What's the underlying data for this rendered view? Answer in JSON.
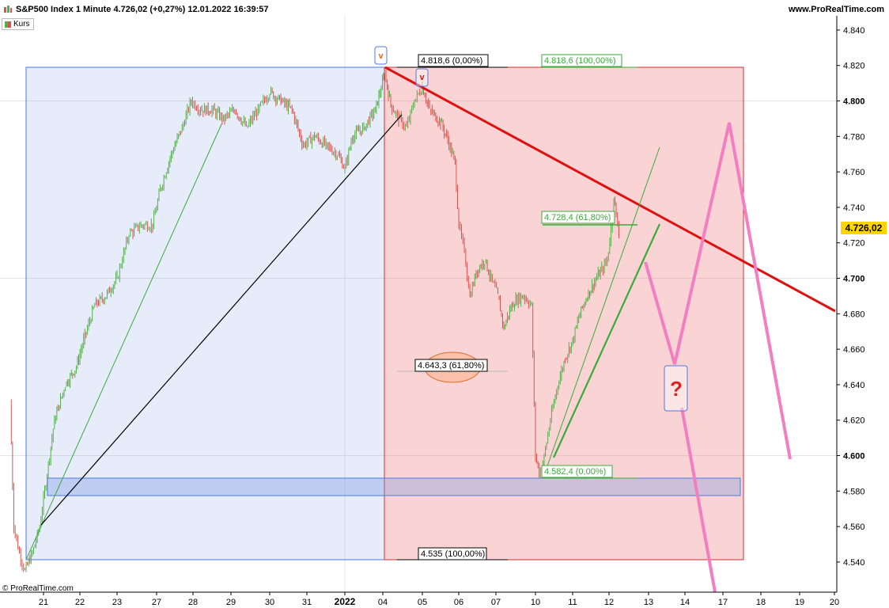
{
  "header": {
    "title": "S&P500 Index 1 Minute 4.726,02 (+0,27%) 12.01.2022 16:39:57",
    "site": "www.ProRealTime.com"
  },
  "legend": {
    "label": "Kurs"
  },
  "copyright": "© ProRealTime.com",
  "price_label": "4.726,02",
  "colors": {
    "up": "#55b04a",
    "down": "#d9534f",
    "trend": "#e01010",
    "projection": "#f27fc1",
    "accent": "#ffd400"
  },
  "annotations": {
    "fib_top_left": "4.818,6 (0,00%)",
    "fib_top_right": "4.818,6 (100,00%)",
    "fib_mid_right": "4.728,4 (61,80%)",
    "fib_mid_left": "4.643,3 (61,80%)",
    "fib_bottom_right": "4.582,4 (0,00%)",
    "fib_bottom_left": "4.535 (100,00%)",
    "question": "?",
    "marker_v1": "v",
    "marker_v2": "v"
  },
  "chart_data": {
    "type": "line",
    "title": "S&P500 Index 1 Minute",
    "xlabel": "",
    "ylabel": "",
    "ylim": [
      4523,
      4848
    ],
    "y_ticks": [
      4540,
      4560,
      4580,
      4600,
      4620,
      4640,
      4660,
      4680,
      4700,
      4720,
      4740,
      4760,
      4780,
      4800,
      4820,
      4840
    ],
    "y_tick_labels": [
      "4.540",
      "4.560",
      "4.580",
      "4.600",
      "4.620",
      "4.640",
      "4.660",
      "4.680",
      "4.700",
      "4.720",
      "4.740",
      "4.760",
      "4.780",
      "4.800",
      "4.820",
      "4.840"
    ],
    "x_ticks": [
      {
        "label": "21",
        "x": 1
      },
      {
        "label": "22",
        "x": 2
      },
      {
        "label": "23",
        "x": 3
      },
      {
        "label": "27",
        "x": 4
      },
      {
        "label": "28",
        "x": 5
      },
      {
        "label": "29",
        "x": 6
      },
      {
        "label": "30",
        "x": 7
      },
      {
        "label": "31",
        "x": 8
      },
      {
        "label": "2022",
        "x": 9
      },
      {
        "label": "04",
        "x": 10
      },
      {
        "label": "05",
        "x": 11
      },
      {
        "label": "06",
        "x": 12
      },
      {
        "label": "07",
        "x": 13
      },
      {
        "label": "10",
        "x": 14
      },
      {
        "label": "11",
        "x": 15
      },
      {
        "label": "12",
        "x": 16
      },
      {
        "label": "13",
        "x": 17
      },
      {
        "label": "14",
        "x": 18
      },
      {
        "label": "17",
        "x": 19
      },
      {
        "label": "18",
        "x": 20
      },
      {
        "label": "19",
        "x": 21
      },
      {
        "label": "20",
        "x": 22
      }
    ],
    "x_range": [
      0.1,
      22.9
    ],
    "grid": true,
    "series": [
      {
        "values": [
          [
            0.1,
            4630
          ],
          [
            0.2,
            4560
          ],
          [
            0.35,
            4545
          ],
          [
            0.5,
            4535
          ],
          [
            0.7,
            4545
          ],
          [
            0.9,
            4560
          ],
          [
            1.1,
            4590
          ],
          [
            1.3,
            4620
          ],
          [
            1.6,
            4640
          ],
          [
            1.9,
            4650
          ],
          [
            2.1,
            4665
          ],
          [
            2.4,
            4685
          ],
          [
            2.7,
            4690
          ],
          [
            3.0,
            4700
          ],
          [
            3.3,
            4725
          ],
          [
            3.6,
            4730
          ],
          [
            3.9,
            4730
          ],
          [
            4.1,
            4750
          ],
          [
            4.4,
            4770
          ],
          [
            4.7,
            4785
          ],
          [
            4.95,
            4800
          ],
          [
            5.2,
            4795
          ],
          [
            5.5,
            4795
          ],
          [
            5.8,
            4790
          ],
          [
            6.1,
            4795
          ],
          [
            6.4,
            4785
          ],
          [
            6.7,
            4795
          ],
          [
            7.0,
            4805
          ],
          [
            7.3,
            4800
          ],
          [
            7.6,
            4795
          ],
          [
            7.9,
            4775
          ],
          [
            8.2,
            4780
          ],
          [
            8.5,
            4775
          ],
          [
            8.8,
            4770
          ],
          [
            9.0,
            4762
          ],
          [
            9.2,
            4780
          ],
          [
            9.5,
            4785
          ],
          [
            9.8,
            4795
          ],
          [
            10.05,
            4815
          ],
          [
            10.2,
            4798
          ],
          [
            10.4,
            4790
          ],
          [
            10.6,
            4785
          ],
          [
            10.8,
            4800
          ],
          [
            11.0,
            4808
          ],
          [
            11.2,
            4795
          ],
          [
            11.5,
            4788
          ],
          [
            11.7,
            4778
          ],
          [
            11.9,
            4765
          ],
          [
            12.0,
            4730
          ],
          [
            12.15,
            4715
          ],
          [
            12.3,
            4690
          ],
          [
            12.5,
            4705
          ],
          [
            12.7,
            4710
          ],
          [
            12.9,
            4698
          ],
          [
            13.05,
            4690
          ],
          [
            13.2,
            4672
          ],
          [
            13.35,
            4682
          ],
          [
            13.5,
            4688
          ],
          [
            13.7,
            4690
          ],
          [
            13.9,
            4685
          ],
          [
            14.0,
            4600
          ],
          [
            14.1,
            4590
          ],
          [
            14.2,
            4595
          ],
          [
            14.4,
            4620
          ],
          [
            14.6,
            4640
          ],
          [
            14.8,
            4655
          ],
          [
            15.0,
            4665
          ],
          [
            15.2,
            4680
          ],
          [
            15.4,
            4690
          ],
          [
            15.6,
            4698
          ],
          [
            15.8,
            4705
          ],
          [
            15.95,
            4710
          ],
          [
            16.05,
            4728
          ],
          [
            16.12,
            4746
          ],
          [
            16.18,
            4735
          ],
          [
            16.25,
            4726
          ]
        ]
      }
    ]
  }
}
